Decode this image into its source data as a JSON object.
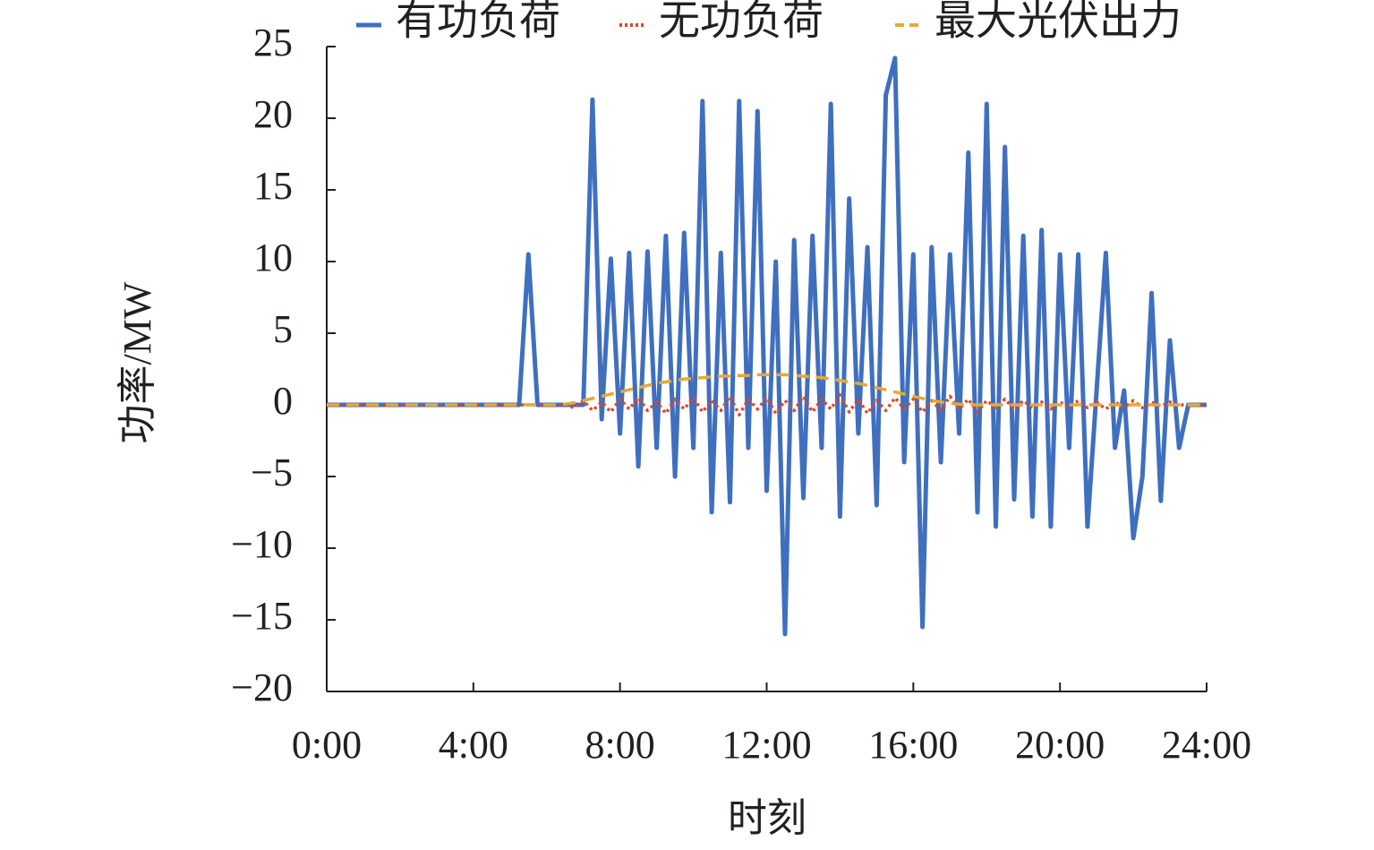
{
  "chart_data": {
    "type": "line",
    "x_label": "时刻",
    "y_label": "功率/MW",
    "x": [
      0,
      0.25,
      0.5,
      0.75,
      1,
      1.25,
      1.5,
      1.75,
      2,
      2.25,
      2.5,
      2.75,
      3,
      3.25,
      3.5,
      3.75,
      4,
      4.25,
      4.5,
      4.75,
      5,
      5.25,
      5.5,
      5.75,
      6,
      6.25,
      6.5,
      6.75,
      7,
      7.25,
      7.5,
      7.75,
      8,
      8.25,
      8.5,
      8.75,
      9,
      9.25,
      9.5,
      9.75,
      10,
      10.25,
      10.5,
      10.75,
      11,
      11.25,
      11.5,
      11.75,
      12,
      12.25,
      12.5,
      12.75,
      13,
      13.25,
      13.5,
      13.75,
      14,
      14.25,
      14.5,
      14.75,
      15,
      15.25,
      15.5,
      15.75,
      16,
      16.25,
      16.5,
      16.75,
      17,
      17.25,
      17.5,
      17.75,
      18,
      18.25,
      18.5,
      18.75,
      19,
      19.25,
      19.5,
      19.75,
      20,
      20.25,
      20.5,
      20.75,
      21,
      21.25,
      21.5,
      21.75,
      22,
      22.25,
      22.5,
      22.75,
      23,
      23.25,
      23.5,
      23.75,
      24
    ],
    "series": [
      {
        "name": "有功负荷",
        "color": "#3f6fbf",
        "style": "solid",
        "values": [
          0,
          0,
          0,
          0,
          0,
          0,
          0,
          0,
          0,
          0,
          0,
          0,
          0,
          0,
          0,
          0,
          0,
          0,
          0,
          0,
          0,
          0,
          10.5,
          0,
          0,
          0,
          0,
          0,
          0,
          21.3,
          -1,
          10.2,
          -2,
          10.6,
          -4.3,
          10.7,
          -3,
          11.8,
          -5,
          12,
          -3,
          21.2,
          -7.5,
          10.6,
          -6.8,
          21.2,
          -3,
          20.5,
          -6,
          10,
          -16,
          11.5,
          -6.5,
          11.8,
          -3,
          21,
          -7.8,
          14.4,
          -2,
          11,
          -7,
          21.6,
          24.2,
          -4,
          10.5,
          -15.5,
          11,
          -4,
          10.5,
          -2,
          17.6,
          -7.5,
          21,
          -8.5,
          18,
          -6.6,
          11.8,
          -7.8,
          12.2,
          -8.5,
          10.5,
          -3,
          10.5,
          -8.5,
          1,
          10.6,
          -3,
          1,
          -9.3,
          -5,
          7.8,
          -6.7,
          4.5,
          -3,
          0,
          0,
          0
        ]
      },
      {
        "name": "无功负荷",
        "color": "#e0452a",
        "style": "dotted",
        "values": [
          0,
          0,
          0,
          0,
          0,
          0,
          0,
          0,
          0,
          0,
          0,
          0,
          0,
          0,
          0,
          0,
          0,
          0,
          0,
          0,
          0,
          0,
          0,
          0,
          0,
          0,
          0,
          -0.2,
          0.3,
          -0.4,
          0.2,
          -0.5,
          0.4,
          -0.3,
          0.5,
          -0.4,
          0.2,
          -0.6,
          0.4,
          -0.3,
          0.5,
          -0.5,
          0.3,
          -0.4,
          0.6,
          -0.7,
          0.4,
          -0.3,
          0.5,
          -0.6,
          0.3,
          -0.4,
          0.6,
          -0.5,
          0.4,
          -0.3,
          0.7,
          -0.5,
          0.4,
          -0.6,
          0.3,
          -0.4,
          0.5,
          -0.3,
          0.4,
          -0.5,
          0.3,
          -0.4,
          0.6,
          -0.3,
          0.4,
          -0.5,
          0.3,
          -0.2,
          0.4,
          -0.3,
          0.3,
          -0.2,
          0.2,
          -0.3,
          0.2,
          -0.2,
          0.3,
          -0.2,
          0.2,
          -0.3,
          0.2,
          -0.2,
          0.3,
          -0.2,
          0.2,
          -0.1,
          0.2,
          0,
          0,
          0,
          0
        ]
      },
      {
        "name": "最大光伏出力",
        "color": "#e6a935",
        "style": "dashed",
        "values": [
          0,
          0,
          0,
          0,
          0,
          0,
          0,
          0,
          0,
          0,
          0,
          0,
          0,
          0,
          0,
          0,
          0,
          0,
          0,
          0,
          0,
          0,
          0,
          0,
          0,
          0,
          0.05,
          0.15,
          0.3,
          0.45,
          0.6,
          0.75,
          0.9,
          1.05,
          1.2,
          1.35,
          1.5,
          1.6,
          1.7,
          1.8,
          1.85,
          1.9,
          1.95,
          2,
          2,
          2.05,
          2.05,
          2.1,
          2.1,
          2.1,
          2.1,
          2.05,
          2,
          1.95,
          1.9,
          1.8,
          1.7,
          1.6,
          1.5,
          1.35,
          1.2,
          1.05,
          0.9,
          0.75,
          0.6,
          0.45,
          0.3,
          0.2,
          0.1,
          0.05,
          0,
          0,
          0,
          0,
          0,
          0,
          0,
          0,
          0,
          0,
          0,
          0,
          0,
          0,
          0,
          0,
          0,
          0,
          0,
          0,
          0,
          0,
          0,
          0,
          0,
          0,
          0
        ]
      }
    ],
    "xlim": [
      0,
      24
    ],
    "xticks": [
      {
        "value": 0,
        "label": "0:00"
      },
      {
        "value": 4,
        "label": "4:00"
      },
      {
        "value": 8,
        "label": "8:00"
      },
      {
        "value": 12,
        "label": "12:00"
      },
      {
        "value": 16,
        "label": "16:00"
      },
      {
        "value": 20,
        "label": "20:00"
      },
      {
        "value": 24,
        "label": "24:00"
      }
    ],
    "ylim": [
      -20,
      25
    ],
    "yticks": [
      {
        "value": -20,
        "label": "−20"
      },
      {
        "value": -15,
        "label": "−15"
      },
      {
        "value": -10,
        "label": "−10"
      },
      {
        "value": -5,
        "label": "−5"
      },
      0,
      5,
      10,
      15,
      20,
      25
    ],
    "legend": "top"
  }
}
